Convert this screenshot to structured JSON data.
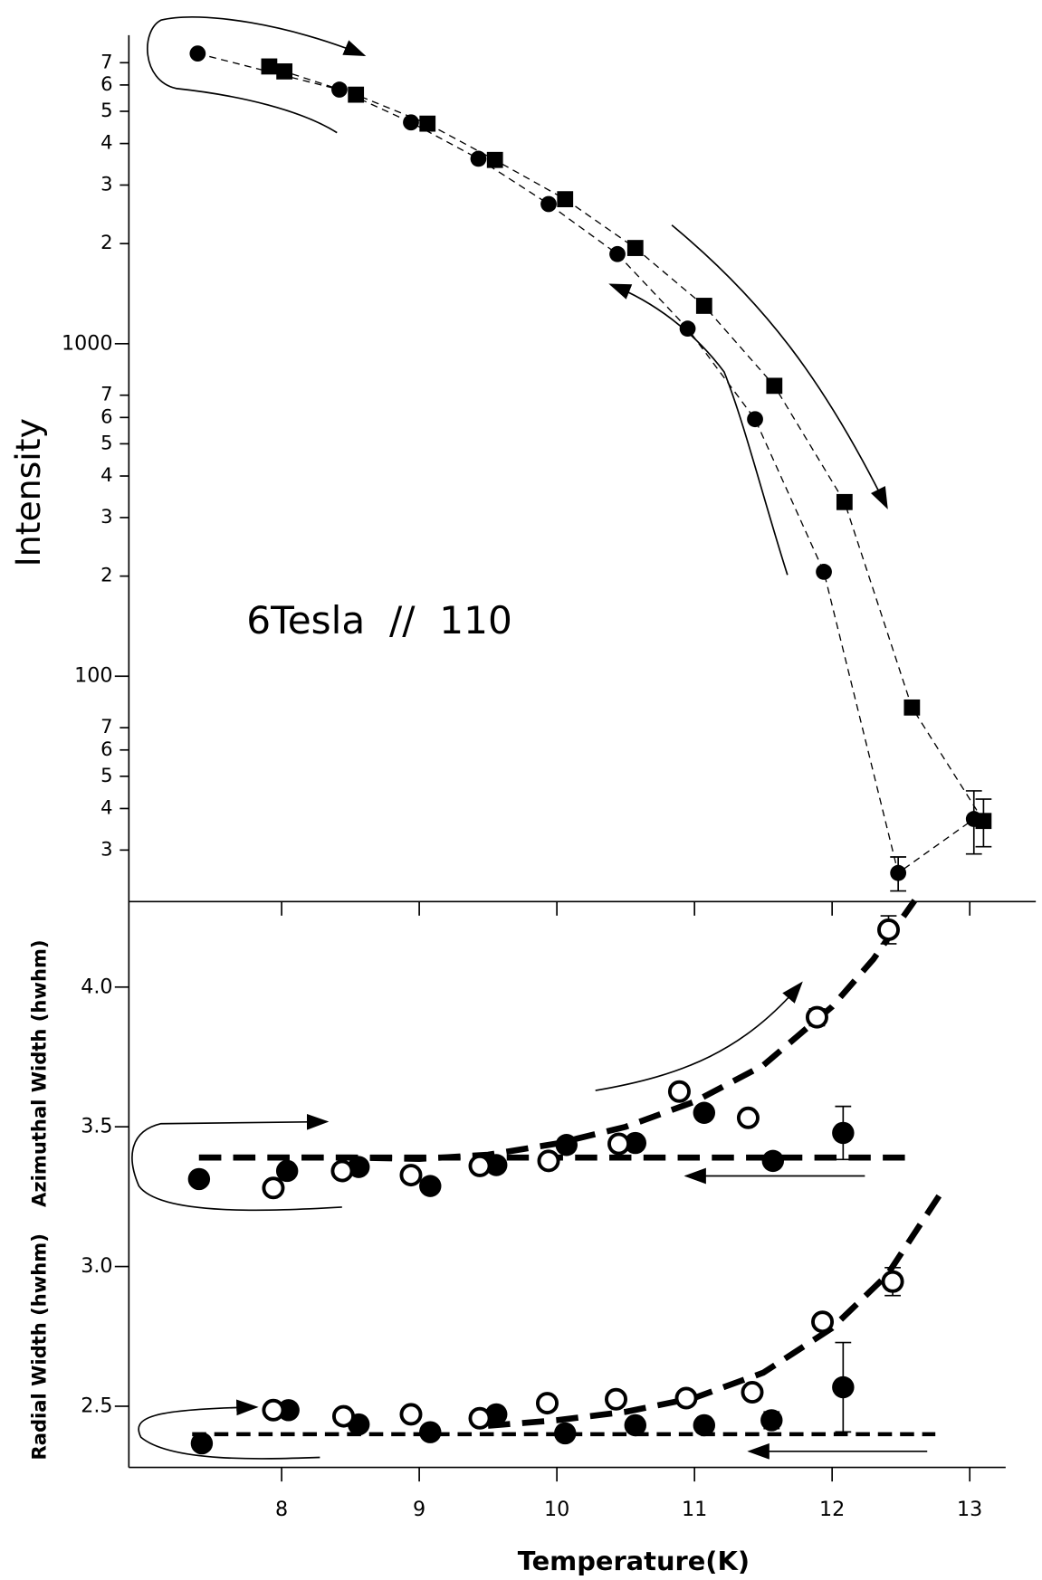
{
  "chart_data": [
    {
      "type": "scatter",
      "log_y": true,
      "ylabel": "Intensity",
      "annotation": "6Tesla  //  110",
      "xlim": [
        6.89,
        13.48
      ],
      "ylim": [
        21,
        8770
      ],
      "yticks": [
        {
          "value": 30,
          "label": "3"
        },
        {
          "value": 40,
          "label": "4"
        },
        {
          "value": 50,
          "label": "5"
        },
        {
          "value": 60,
          "label": "6"
        },
        {
          "value": 70,
          "label": "7"
        },
        100,
        {
          "value": 200,
          "label": "2"
        },
        {
          "value": 300,
          "label": "3"
        },
        {
          "value": 400,
          "label": "4"
        },
        {
          "value": 500,
          "label": "5"
        },
        {
          "value": 600,
          "label": "6"
        },
        {
          "value": 700,
          "label": "7"
        },
        1000,
        {
          "value": 2000,
          "label": "2"
        },
        {
          "value": 3000,
          "label": "3"
        },
        {
          "value": 4000,
          "label": "4"
        },
        {
          "value": 5000,
          "label": "5"
        },
        {
          "value": 6000,
          "label": "6"
        },
        {
          "value": 7000,
          "label": "7"
        }
      ],
      "series": [
        {
          "marker": "circle",
          "filled": true,
          "color": "#000000",
          "line": "dashed",
          "x": [
            7.39,
            8.42,
            8.94,
            9.43,
            9.94,
            10.44,
            10.95,
            11.44,
            11.94,
            12.48,
            13.03
          ],
          "values": [
            7460,
            5810,
            4630,
            3600,
            2630,
            1860,
            1110,
            593,
            206,
            25.6,
            37.2
          ],
          "errors": [
            null,
            null,
            null,
            null,
            null,
            null,
            null,
            null,
            null,
            3,
            8
          ]
        },
        {
          "marker": "square",
          "filled": true,
          "color": "#000000",
          "line": "dashed",
          "x": [
            7.91,
            8.02,
            8.54,
            9.06,
            9.55,
            10.06,
            10.57,
            11.07,
            11.58,
            12.09,
            12.58,
            13.1
          ],
          "values": [
            6820,
            6590,
            5610,
            4590,
            3570,
            2720,
            1940,
            1300,
            747,
            334,
            80.5,
            36.7
          ],
          "errors": [
            null,
            null,
            null,
            null,
            null,
            null,
            null,
            null,
            null,
            null,
            null,
            6
          ]
        }
      ]
    },
    {
      "type": "scatter",
      "ylabels": [
        "Azimuthal Width (hwhm)",
        "Radial Width (hwhm)"
      ],
      "xlabel": "Temperature(K)",
      "xlim": [
        6.89,
        13.48
      ],
      "ylim": [
        2.281,
        4.306
      ],
      "xticks": [
        8,
        9,
        10,
        11,
        12,
        13
      ],
      "yticks": [
        2.5,
        {
          "value": 3,
          "label": "3.0"
        },
        3.5,
        {
          "value": 4,
          "label": "4.0"
        }
      ],
      "series": [
        {
          "marker": "circle",
          "filled": true,
          "color": "#000000",
          "x": [
            7.4,
            8.04,
            8.56,
            9.08,
            9.56,
            10.07,
            10.57,
            11.07,
            11.57,
            12.08
          ],
          "values": [
            3.313,
            3.342,
            3.356,
            3.288,
            3.363,
            3.435,
            3.442,
            3.55,
            3.378,
            3.478
          ],
          "errors": [
            null,
            null,
            null,
            null,
            null,
            null,
            null,
            null,
            null,
            0.095
          ]
        },
        {
          "marker": "circle",
          "filled": false,
          "color": "#000000",
          "x": [
            7.94,
            8.44,
            8.94,
            9.44,
            9.94,
            10.45,
            10.89,
            11.39,
            11.89,
            12.41
          ],
          "values": [
            3.281,
            3.342,
            3.327,
            3.36,
            3.378,
            3.439,
            3.626,
            3.532,
            3.892,
            4.205
          ],
          "errors": [
            null,
            null,
            null,
            null,
            null,
            null,
            null,
            null,
            0.03,
            0.05
          ]
        },
        {
          "marker": "circle",
          "filled": true,
          "color": "#000000",
          "x": [
            7.42,
            8.05,
            8.56,
            9.08,
            9.56,
            10.06,
            10.57,
            11.07,
            11.56,
            12.08
          ],
          "values": [
            2.367,
            2.486,
            2.435,
            2.407,
            2.471,
            2.403,
            2.432,
            2.432,
            2.45,
            2.568
          ],
          "errors": [
            null,
            null,
            null,
            null,
            null,
            null,
            null,
            null,
            0.03,
            0.16
          ]
        },
        {
          "marker": "circle",
          "filled": false,
          "color": "#000000",
          "x": [
            7.94,
            8.45,
            8.94,
            9.44,
            9.93,
            10.43,
            10.94,
            11.42,
            11.93,
            12.44
          ],
          "values": [
            2.486,
            2.464,
            2.471,
            2.457,
            2.511,
            2.525,
            2.529,
            2.55,
            2.802,
            2.946
          ],
          "errors": [
            null,
            null,
            null,
            null,
            null,
            null,
            null,
            null,
            null,
            0.05
          ]
        }
      ],
      "curves": [
        {
          "style": "thick",
          "x": [
            7.4,
            12.6
          ],
          "values": [
            3.39,
            3.39
          ]
        },
        {
          "style": "thick",
          "x": [
            7.4,
            8.5,
            9,
            9.5,
            10,
            10.5,
            11,
            11.5,
            12,
            12.3,
            12.6
          ],
          "values": [
            3.39,
            3.39,
            3.385,
            3.4,
            3.44,
            3.5,
            3.59,
            3.72,
            3.93,
            4.1,
            4.31
          ]
        },
        {
          "style": "medium",
          "x": [
            7.35,
            12.75
          ],
          "values": [
            2.4,
            2.4
          ]
        },
        {
          "style": "thick",
          "x": [
            9.5,
            10,
            10.5,
            11,
            11.5,
            12,
            12.4,
            12.8
          ],
          "values": [
            2.43,
            2.45,
            2.48,
            2.53,
            2.62,
            2.78,
            2.97,
            3.27
          ]
        }
      ]
    }
  ]
}
